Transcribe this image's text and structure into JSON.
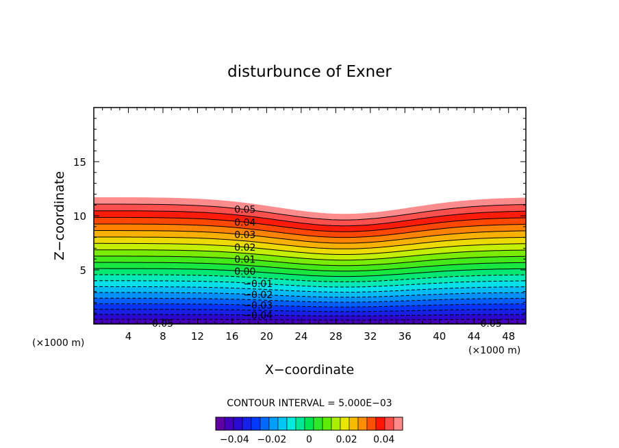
{
  "chart_data": {
    "type": "contour",
    "title": "disturbunce of Exner",
    "xlabel": "X−coordinate",
    "ylabel": "Z−coordinate",
    "x_unit_left": "(×1000 m)",
    "x_unit_right": "(×1000 m)",
    "xlim": [
      0,
      50
    ],
    "ylim": [
      0,
      20
    ],
    "x_ticks": [
      4,
      8,
      12,
      16,
      20,
      24,
      28,
      32,
      36,
      40,
      44,
      48
    ],
    "y_ticks": [
      5,
      10,
      15
    ],
    "contour_interval_text": "CONTOUR INTERVAL = 5.000E−03",
    "contour_levels": [
      -0.05,
      -0.045,
      -0.04,
      -0.035,
      -0.03,
      -0.025,
      -0.02,
      -0.015,
      -0.01,
      -0.005,
      0.0,
      0.005,
      0.01,
      0.015,
      0.02,
      0.025,
      0.03,
      0.035,
      0.04,
      0.045,
      0.05,
      0.055
    ],
    "field_top_height": 11.7,
    "terrain_dip_center_x": 29,
    "terrain_dip_depth": 1.4,
    "line_labels": [
      {
        "text": "0.05",
        "x": 17.5
      },
      {
        "text": "0.04",
        "x": 17.5
      },
      {
        "text": "0.03",
        "x": 17.5
      },
      {
        "text": "0.02",
        "x": 17.5
      },
      {
        "text": "0.01",
        "x": 17.5
      },
      {
        "text": "0.00",
        "x": 17.5
      },
      {
        "text": "−0.01",
        "x": 19
      },
      {
        "text": "−0.02",
        "x": 19
      },
      {
        "text": "−0.03",
        "x": 19
      },
      {
        "text": "−0.04",
        "x": 19
      },
      {
        "text": "−0.05",
        "x": 7.5
      },
      {
        "text": "−0.05",
        "x": 45.5
      }
    ],
    "colorbar": {
      "min": -0.05,
      "max": 0.05,
      "tick_labels": [
        "−0.04",
        "−0.02",
        "0",
        "0.02",
        "0.04"
      ],
      "tick_values": [
        -0.04,
        -0.02,
        0,
        0.02,
        0.04
      ]
    }
  }
}
